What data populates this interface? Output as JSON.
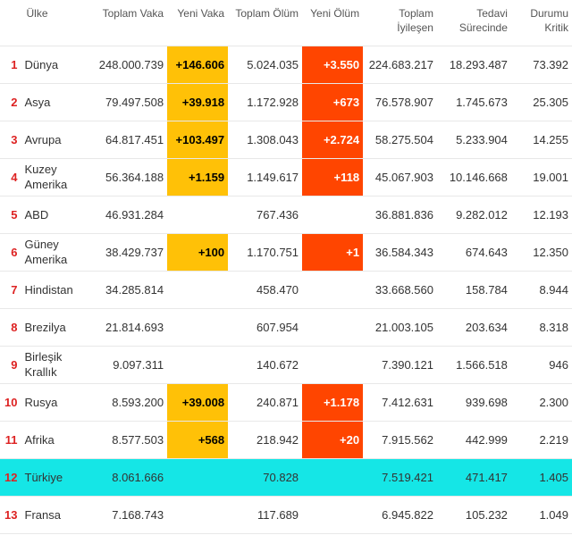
{
  "colors": {
    "rank_text": "#dd2222",
    "highlight_yellow": "#ffc107",
    "highlight_orange": "#ff4500",
    "highlight_cyan": "#15e6e6",
    "border": "#e8e8e8",
    "header_text": "#555555"
  },
  "columns": [
    {
      "key": "rank",
      "label": ""
    },
    {
      "key": "country",
      "label": "Ülke"
    },
    {
      "key": "total_cases",
      "label": "Toplam Vaka"
    },
    {
      "key": "new_cases",
      "label": "Yeni Vaka"
    },
    {
      "key": "total_deaths",
      "label": "Toplam Ölüm"
    },
    {
      "key": "new_deaths",
      "label": "Yeni Ölüm"
    },
    {
      "key": "total_recovered",
      "label": "Toplam İyileşen"
    },
    {
      "key": "in_treatment",
      "label": "Tedavi Sürecinde"
    },
    {
      "key": "critical",
      "label": "Durumu Kritik"
    }
  ],
  "rows": [
    {
      "rank": "1",
      "country": "Dünya",
      "total_cases": "248.000.739",
      "new_cases": "+146.606",
      "total_deaths": "5.024.035",
      "new_deaths": "+3.550",
      "total_recovered": "224.683.217",
      "in_treatment": "18.293.487",
      "critical": "73.392",
      "nc_hl": "yellow",
      "nd_hl": "orange"
    },
    {
      "rank": "2",
      "country": "Asya",
      "total_cases": "79.497.508",
      "new_cases": "+39.918",
      "total_deaths": "1.172.928",
      "new_deaths": "+673",
      "total_recovered": "76.578.907",
      "in_treatment": "1.745.673",
      "critical": "25.305",
      "nc_hl": "yellow",
      "nd_hl": "orange"
    },
    {
      "rank": "3",
      "country": "Avrupa",
      "total_cases": "64.817.451",
      "new_cases": "+103.497",
      "total_deaths": "1.308.043",
      "new_deaths": "+2.724",
      "total_recovered": "58.275.504",
      "in_treatment": "5.233.904",
      "critical": "14.255",
      "nc_hl": "yellow",
      "nd_hl": "orange"
    },
    {
      "rank": "4",
      "country": "Kuzey Amerika",
      "total_cases": "56.364.188",
      "new_cases": "+1.159",
      "total_deaths": "1.149.617",
      "new_deaths": "+118",
      "total_recovered": "45.067.903",
      "in_treatment": "10.146.668",
      "critical": "19.001",
      "nc_hl": "yellow",
      "nd_hl": "orange"
    },
    {
      "rank": "5",
      "country": "ABD",
      "total_cases": "46.931.284",
      "new_cases": "",
      "total_deaths": "767.436",
      "new_deaths": "",
      "total_recovered": "36.881.836",
      "in_treatment": "9.282.012",
      "critical": "12.193",
      "nc_hl": "",
      "nd_hl": ""
    },
    {
      "rank": "6",
      "country": "Güney Amerika",
      "total_cases": "38.429.737",
      "new_cases": "+100",
      "total_deaths": "1.170.751",
      "new_deaths": "+1",
      "total_recovered": "36.584.343",
      "in_treatment": "674.643",
      "critical": "12.350",
      "nc_hl": "yellow",
      "nd_hl": "orange"
    },
    {
      "rank": "7",
      "country": "Hindistan",
      "total_cases": "34.285.814",
      "new_cases": "",
      "total_deaths": "458.470",
      "new_deaths": "",
      "total_recovered": "33.668.560",
      "in_treatment": "158.784",
      "critical": "8.944",
      "nc_hl": "",
      "nd_hl": ""
    },
    {
      "rank": "8",
      "country": "Brezilya",
      "total_cases": "21.814.693",
      "new_cases": "",
      "total_deaths": "607.954",
      "new_deaths": "",
      "total_recovered": "21.003.105",
      "in_treatment": "203.634",
      "critical": "8.318",
      "nc_hl": "",
      "nd_hl": ""
    },
    {
      "rank": "9",
      "country": "Birleşik Krallık",
      "total_cases": "9.097.311",
      "new_cases": "",
      "total_deaths": "140.672",
      "new_deaths": "",
      "total_recovered": "7.390.121",
      "in_treatment": "1.566.518",
      "critical": "946",
      "nc_hl": "",
      "nd_hl": ""
    },
    {
      "rank": "10",
      "country": "Rusya",
      "total_cases": "8.593.200",
      "new_cases": "+39.008",
      "total_deaths": "240.871",
      "new_deaths": "+1.178",
      "total_recovered": "7.412.631",
      "in_treatment": "939.698",
      "critical": "2.300",
      "nc_hl": "yellow",
      "nd_hl": "orange"
    },
    {
      "rank": "11",
      "country": "Afrika",
      "total_cases": "8.577.503",
      "new_cases": "+568",
      "total_deaths": "218.942",
      "new_deaths": "+20",
      "total_recovered": "7.915.562",
      "in_treatment": "442.999",
      "critical": "2.219",
      "nc_hl": "yellow",
      "nd_hl": "orange"
    },
    {
      "rank": "12",
      "country": "Türkiye",
      "total_cases": "8.061.666",
      "new_cases": "",
      "total_deaths": "70.828",
      "new_deaths": "",
      "total_recovered": "7.519.421",
      "in_treatment": "471.417",
      "critical": "1.405",
      "nc_hl": "",
      "nd_hl": "",
      "row_hl": "cyan"
    },
    {
      "rank": "13",
      "country": "Fransa",
      "total_cases": "7.168.743",
      "new_cases": "",
      "total_deaths": "117.689",
      "new_deaths": "",
      "total_recovered": "6.945.822",
      "in_treatment": "105.232",
      "critical": "1.049",
      "nc_hl": "",
      "nd_hl": ""
    }
  ]
}
